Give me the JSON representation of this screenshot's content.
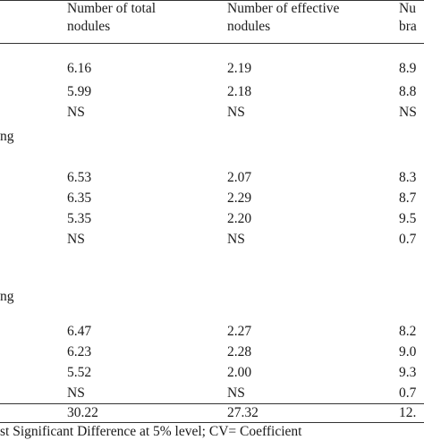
{
  "headers": [
    [
      "Number of total",
      "nodules"
    ],
    [
      "Number of effective",
      "nodules"
    ],
    [
      "Nu",
      "bra"
    ]
  ],
  "sections": [
    {
      "label": "",
      "rows": [
        [
          "6.16",
          "2.19",
          "8.9"
        ],
        [
          "5.99",
          "2.18",
          "8.8"
        ],
        [
          "NS",
          "NS",
          "NS"
        ]
      ]
    },
    {
      "label": "ng",
      "rows": [
        [
          "6.53",
          "2.07",
          "8.3"
        ],
        [
          "6.35",
          "2.29",
          "8.7"
        ],
        [
          "5.35",
          "2.20",
          "9.5"
        ],
        [
          "NS",
          "NS",
          "0.7"
        ]
      ]
    },
    {
      "label": "ng",
      "rows": [
        [
          "6.47",
          "2.27",
          "8.2"
        ],
        [
          "6.23",
          "2.28",
          "9.0"
        ],
        [
          "5.52",
          "2.00",
          "9.3"
        ],
        [
          "NS",
          "NS",
          "0.7"
        ]
      ]
    }
  ],
  "cv_row": [
    "30.22",
    "27.32",
    "12."
  ],
  "footnote": "st Significant Difference at 5% level; CV= Coefficient"
}
